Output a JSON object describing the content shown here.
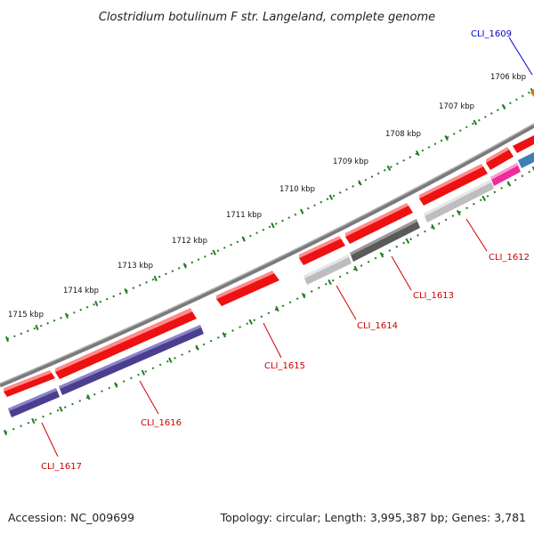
{
  "title": "Clostridium botulinum F str. Langeland, complete genome",
  "footer": {
    "accession": "Accession: NC_009699",
    "topology": "Topology: circular; Length: 3,995,387 bp; Genes: 3,781"
  },
  "colors": {
    "backbone": "#8a8a8a",
    "tick": "#1e7d1e",
    "gene_red": "#ee1111",
    "gene_light_gray": "#bdbdbd",
    "gene_dark_gray": "#5a5a5a",
    "gene_purple": "#4a3f8f",
    "gene_magenta": "#ee2c9c",
    "gene_blue": "#3f7fb5",
    "gene_orange": "#d77a14",
    "label_red": "#cc0000",
    "label_blue": "#0000cc"
  },
  "scale_labels": [
    "1706 kbp",
    "1707 kbp",
    "1708 kbp",
    "1709 kbp",
    "1710 kbp",
    "1711 kbp",
    "1712 kbp",
    "1713 kbp",
    "1714 kbp",
    "1715 kbp"
  ],
  "gene_labels": [
    "CLI_1609",
    "CLI_1612",
    "CLI_1613",
    "CLI_1614",
    "CLI_1615",
    "CLI_1616",
    "CLI_1617"
  ]
}
